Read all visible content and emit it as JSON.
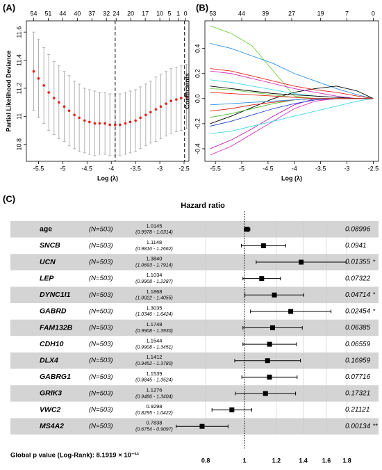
{
  "chart_data": [
    {
      "type": "errorbar",
      "label": "(A)",
      "xlabel": "Log (λ)",
      "ylabel": "Partial Likelihood Deviance",
      "color": "#e8201a",
      "bar_color": "#aaaaaa",
      "x": [
        -5.6,
        -5.5,
        -5.39,
        -5.29,
        -5.18,
        -5.08,
        -4.97,
        -4.87,
        -4.76,
        -4.66,
        -4.55,
        -4.45,
        -4.34,
        -4.24,
        -4.13,
        -4.03,
        -3.92,
        -3.82,
        -3.71,
        -3.61,
        -3.5,
        -3.4,
        -3.29,
        -3.19,
        -3.08,
        -2.98,
        -2.87,
        -2.77,
        -2.66,
        -2.56,
        -2.45
      ],
      "values": [
        11.32,
        11.27,
        11.22,
        11.17,
        11.13,
        11.1,
        11.07,
        11.04,
        11.01,
        10.99,
        10.97,
        10.96,
        10.95,
        10.95,
        10.95,
        10.94,
        10.94,
        10.94,
        10.95,
        10.96,
        10.97,
        10.99,
        11.01,
        11.03,
        11.05,
        11.07,
        11.09,
        11.11,
        11.12,
        11.13,
        11.14
      ],
      "errors": [
        0.28,
        0.28,
        0.27,
        0.27,
        0.26,
        0.26,
        0.25,
        0.25,
        0.24,
        0.24,
        0.23,
        0.23,
        0.23,
        0.22,
        0.22,
        0.22,
        0.22,
        0.22,
        0.22,
        0.22,
        0.22,
        0.22,
        0.22,
        0.22,
        0.23,
        0.23,
        0.23,
        0.23,
        0.23,
        0.23,
        0.23
      ],
      "vlines": [
        -3.92,
        -2.49
      ],
      "xlim": [
        -5.75,
        -2.4
      ],
      "ylim": [
        10.68,
        11.68
      ],
      "xticks": [
        -5.5,
        -5.0,
        -4.5,
        -4.0,
        -3.5,
        -3.0,
        -2.5
      ],
      "yticks": [
        10.8,
        11.0,
        11.2,
        11.4,
        11.6
      ],
      "top_ticks": [
        {
          "value": -5.6,
          "label": "54"
        },
        {
          "value": -5.3,
          "label": "51"
        },
        {
          "value": -5.0,
          "label": "44"
        },
        {
          "value": -4.7,
          "label": "40"
        },
        {
          "value": -4.4,
          "label": "37"
        },
        {
          "value": -4.1,
          "label": "32"
        },
        {
          "value": -3.9,
          "label": "24"
        },
        {
          "value": -3.6,
          "label": "20"
        },
        {
          "value": -3.3,
          "label": "17"
        },
        {
          "value": -3.0,
          "label": "10"
        },
        {
          "value": -2.8,
          "label": "5"
        },
        {
          "value": -2.62,
          "label": "1"
        },
        {
          "value": -2.47,
          "label": "0"
        }
      ]
    },
    {
      "type": "line",
      "label": "(B)",
      "xlabel": "Log (λ)",
      "ylabel": "Coefficients",
      "x": [
        -5.6,
        -5.2,
        -4.8,
        -4.4,
        -4.0,
        -3.6,
        -3.2,
        -2.8,
        -2.5
      ],
      "series": [
        {
          "color": "#6fcf3f",
          "values": [
            0.58,
            0.52,
            0.42,
            0.22,
            0.02,
            0,
            0,
            0,
            0
          ]
        },
        {
          "color": "#2b8fde",
          "values": [
            0.44,
            0.4,
            0.34,
            0.28,
            0.2,
            0.14,
            0.08,
            0.03,
            0
          ]
        },
        {
          "color": "#d62fc0",
          "values": [
            -0.45,
            -0.38,
            -0.28,
            -0.18,
            -0.08,
            -0.02,
            0,
            0,
            0
          ]
        },
        {
          "color": "#c020b0",
          "values": [
            -0.4,
            -0.33,
            -0.24,
            -0.14,
            -0.05,
            0,
            0,
            0,
            0
          ]
        },
        {
          "color": "#3fd9e8",
          "values": [
            -0.28,
            -0.26,
            -0.22,
            -0.18,
            -0.14,
            -0.1,
            -0.06,
            -0.02,
            0
          ]
        },
        {
          "color": "#000000",
          "values": [
            -0.2,
            -0.14,
            -0.07,
            0,
            0.05,
            0.08,
            0.1,
            0.06,
            0
          ]
        },
        {
          "color": "#e8201a",
          "values": [
            0.24,
            0.22,
            0.18,
            0.14,
            0.1,
            0.07,
            0.05,
            0.02,
            0
          ]
        },
        {
          "color": "#d62fc0",
          "values": [
            0.22,
            0.2,
            0.16,
            0.12,
            0.08,
            0.05,
            0.02,
            0,
            0
          ]
        },
        {
          "color": "#2244cc",
          "values": [
            -0.22,
            -0.18,
            -0.13,
            -0.08,
            -0.04,
            -0.01,
            0,
            0,
            0
          ]
        },
        {
          "color": "#4cbb30",
          "values": [
            -0.15,
            -0.12,
            -0.08,
            -0.04,
            -0.01,
            0,
            0,
            0,
            0
          ]
        },
        {
          "color": "#e8201a",
          "values": [
            -0.1,
            -0.08,
            -0.05,
            -0.03,
            -0.01,
            0,
            0,
            0,
            0
          ]
        },
        {
          "color": "#3fd9e8",
          "values": [
            0.15,
            0.13,
            0.1,
            0.07,
            0.04,
            0.02,
            0.01,
            0,
            0
          ]
        },
        {
          "color": "#000000",
          "values": [
            0.1,
            0.08,
            0.06,
            0.04,
            0.03,
            0.02,
            0.01,
            0,
            0
          ]
        },
        {
          "color": "#6fcf3f",
          "values": [
            0.08,
            0.07,
            0.05,
            0.03,
            0.01,
            0,
            0,
            0,
            0
          ]
        },
        {
          "color": "#2b8fde",
          "values": [
            -0.05,
            -0.04,
            -0.03,
            -0.02,
            -0.01,
            0,
            0,
            0,
            0
          ]
        },
        {
          "color": "#e8201a",
          "values": [
            0.05,
            0.04,
            0.03,
            0.02,
            0.01,
            0,
            0,
            0,
            0
          ]
        }
      ],
      "xlim": [
        -5.7,
        -2.4
      ],
      "ylim": [
        -0.5,
        0.62
      ],
      "xticks": [
        -5.5,
        -5.0,
        -4.5,
        -4.0,
        -3.5,
        -3.0,
        -2.5
      ],
      "yticks": [
        {
          "value": -0.4,
          "label": "-0.4"
        },
        {
          "value": -0.2,
          "label": "-0.2"
        },
        {
          "value": 0,
          "label": "0.0"
        },
        {
          "value": 0.2,
          "label": "0.2"
        },
        {
          "value": 0.4,
          "label": "0.4"
        }
      ],
      "top_ticks": [
        {
          "value": -5.55,
          "label": "53"
        },
        {
          "value": -5.0,
          "label": "44"
        },
        {
          "value": -4.55,
          "label": "39"
        },
        {
          "value": -4.05,
          "label": "27"
        },
        {
          "value": -3.5,
          "label": "19"
        },
        {
          "value": -3.0,
          "label": "7"
        },
        {
          "value": -2.5,
          "label": "0"
        }
      ]
    },
    {
      "type": "forest",
      "label": "(C)",
      "title": "Hazard ratio",
      "log": true,
      "xlim": [
        0.65,
        2.0
      ],
      "xticks": [
        0.8,
        1,
        1.2,
        1.4,
        1.6,
        1.8
      ],
      "footer": "Global p value (Log-Rank): 8.1919 × 10⁻¹¹",
      "rows": [
        {
          "name": "age",
          "n": "(N=503)",
          "hr": 1.0145,
          "hr_label": "1.0145",
          "ci": [
            0.9978,
            1.0314
          ],
          "ci_label": "(0.9978 - 1.0314)",
          "p": 0.08996
        },
        {
          "name": "SNCB",
          "n": "(N=503)",
          "hr": 1.1148,
          "hr_label": "1.1148",
          "ci": [
            0.9816,
            1.2662
          ],
          "ci_label": "(0.9816 - 1.2662)",
          "p": 0.0941
        },
        {
          "name": "UCN",
          "n": "(N=503)",
          "hr": 1.384,
          "hr_label": "1.3840",
          "ci": [
            1.0693,
            1.7914
          ],
          "ci_label": "(1.0693 - 1.7914)",
          "p": 0.01355,
          "sig": "*"
        },
        {
          "name": "LEP",
          "n": "(N=503)",
          "hr": 1.1034,
          "hr_label": "1.1034",
          "ci": [
            0.9908,
            1.2287
          ],
          "ci_label": "(0.9908 - 1.2287)",
          "p": 0.07322
        },
        {
          "name": "DYNC1I1",
          "n": "(N=503)",
          "hr": 1.1868,
          "hr_label": "1.1868",
          "ci": [
            1.0022,
            1.4055
          ],
          "ci_label": "(1.0022 - 1.4055)",
          "p": 0.04714,
          "sig": "*"
        },
        {
          "name": "GABRD",
          "n": "(N=503)",
          "hr": 1.3035,
          "hr_label": "1.3035",
          "ci": [
            1.0346,
            1.6424
          ],
          "ci_label": "(1.0346 - 1.6424)",
          "p": 0.02454,
          "sig": "*"
        },
        {
          "name": "FAM132B",
          "n": "(N=503)",
          "hr": 1.1748,
          "hr_label": "1.1748",
          "ci": [
            0.9908,
            1.393
          ],
          "ci_label": "(0.9908 - 1.3930)",
          "p": 0.06385
        },
        {
          "name": "CDH10",
          "n": "(N=503)",
          "hr": 1.1544,
          "hr_label": "1.1544",
          "ci": [
            0.9908,
            1.3451
          ],
          "ci_label": "(0.9908 - 1.3451)",
          "p": 0.06559
        },
        {
          "name": "DLX4",
          "n": "(N=503)",
          "hr": 1.1412,
          "hr_label": "1.1412",
          "ci": [
            0.9452,
            1.378
          ],
          "ci_label": "(0.9452 - 1.3780)",
          "p": 0.16959
        },
        {
          "name": "GABRG1",
          "n": "(N=503)",
          "hr": 1.1539,
          "hr_label": "1.1539",
          "ci": [
            0.9845,
            1.3524
          ],
          "ci_label": "(0.9845 - 1.3524)",
          "p": 0.07716
        },
        {
          "name": "GRIK3",
          "n": "(N=503)",
          "hr": 1.1276,
          "hr_label": "1.1276",
          "ci": [
            0.9486,
            1.3404
          ],
          "ci_label": "(0.9486 - 1.3404)",
          "p": 0.17321
        },
        {
          "name": "VWC2",
          "n": "(N=503)",
          "hr": 0.9298,
          "hr_label": "0.9298",
          "ci": [
            0.8295,
            1.0422
          ],
          "ci_label": "(0.8295 - 1.0422)",
          "p": 0.21121
        },
        {
          "name": "MS4A2",
          "n": "(N=503)",
          "hr": 0.7838,
          "hr_label": "0.7838",
          "ci": [
            0.6754,
            0.9097
          ],
          "ci_label": "(0.6754 - 0.9097)",
          "p": 0.00134,
          "sig": "**"
        }
      ]
    }
  ]
}
